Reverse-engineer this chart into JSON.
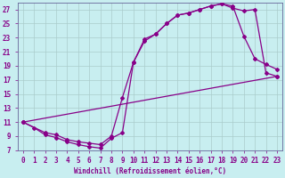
{
  "xlabel": "Windchill (Refroidissement éolien,°C)",
  "bg_color": "#c8eef0",
  "grid_color": "#aacccc",
  "line_color": "#880088",
  "xlim": [
    -0.5,
    23.5
  ],
  "ylim": [
    7,
    28
  ],
  "yticks": [
    7,
    9,
    11,
    13,
    15,
    17,
    19,
    21,
    23,
    25,
    27
  ],
  "xticks": [
    0,
    1,
    2,
    3,
    4,
    5,
    6,
    7,
    8,
    9,
    10,
    11,
    12,
    13,
    14,
    15,
    16,
    17,
    18,
    19,
    20,
    21,
    22,
    23
  ],
  "curve1_x": [
    0,
    1,
    2,
    3,
    4,
    5,
    6,
    7,
    8,
    9,
    10,
    11,
    12,
    13,
    14,
    15,
    16,
    17,
    18,
    19,
    20,
    21,
    22,
    23
  ],
  "curve1_y": [
    11,
    10.2,
    9.2,
    8.8,
    8.2,
    7.8,
    7.5,
    7.3,
    8.7,
    9.5,
    19.5,
    22.5,
    23.5,
    25.0,
    26.2,
    26.5,
    27.0,
    27.5,
    27.8,
    27.2,
    26.8,
    27.0,
    18.0,
    17.5
  ],
  "curve2_x": [
    0,
    2,
    3,
    4,
    5,
    6,
    7,
    8,
    9,
    10,
    11,
    12,
    13,
    14,
    15,
    16,
    17,
    18,
    19,
    20,
    21,
    22,
    23
  ],
  "curve2_y": [
    11,
    9.5,
    9.2,
    8.5,
    8.2,
    8.0,
    7.8,
    9.0,
    14.5,
    19.5,
    22.8,
    23.5,
    25.0,
    26.2,
    26.5,
    27.0,
    27.5,
    27.8,
    27.5,
    23.2,
    20.0,
    19.2,
    18.5
  ],
  "curve3_x": [
    0,
    23
  ],
  "curve3_y": [
    11,
    17.5
  ],
  "marker": "D",
  "markersize": 2.0,
  "linewidth": 0.9,
  "xlabel_fontsize": 5.5,
  "tick_fontsize": 5.5
}
